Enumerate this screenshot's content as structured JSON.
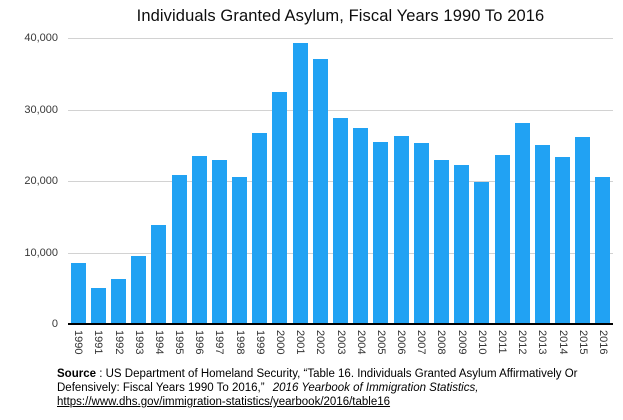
{
  "chart_data": {
    "type": "bar",
    "title": "Individuals Granted Asylum, Fiscal Years 1990 To 2016",
    "categories": [
      "1990",
      "1991",
      "1992",
      "1993",
      "1994",
      "1995",
      "1996",
      "1997",
      "1998",
      "1999",
      "2000",
      "2001",
      "2002",
      "2003",
      "2004",
      "2005",
      "2006",
      "2007",
      "2008",
      "2009",
      "2010",
      "2011",
      "2012",
      "2013",
      "2014",
      "2015",
      "2016"
    ],
    "values": [
      8500,
      5000,
      6300,
      9500,
      13800,
      20900,
      23500,
      23000,
      20500,
      26700,
      32500,
      39300,
      37000,
      28800,
      27400,
      25400,
      26300,
      25300,
      23000,
      22300,
      19800,
      23700,
      28100,
      25000,
      23400,
      26100,
      20500
    ],
    "xlabel": "",
    "ylabel": "",
    "ylim": [
      0,
      40000
    ],
    "grid": true,
    "legend_position": "none",
    "bar_color": "#21a2f3",
    "y_ticks": [
      {
        "value": 0,
        "label": "0"
      },
      {
        "value": 10000,
        "label": "10,000"
      },
      {
        "value": 20000,
        "label": "20,000"
      },
      {
        "value": 30000,
        "label": "30,000"
      },
      {
        "value": 40000,
        "label": "40,000"
      }
    ]
  },
  "footer": {
    "segments": [
      {
        "text": "Source",
        "bold": true
      },
      {
        "text": ": US Department of Homeland Security, “Table 16. Individuals Granted Asylum Affirmatively Or Defensively: Fiscal Years 1990 To 2016,”"
      },
      {
        "text": "2016 Yearbook of Immigration Statistics,",
        "italic": true
      },
      {
        "text": " "
      },
      {
        "text": "https://www.dhs.gov/immigration-statistics/yearbook/2016/table16",
        "underline": true,
        "name": "source-link",
        "interactable": true
      }
    ]
  }
}
